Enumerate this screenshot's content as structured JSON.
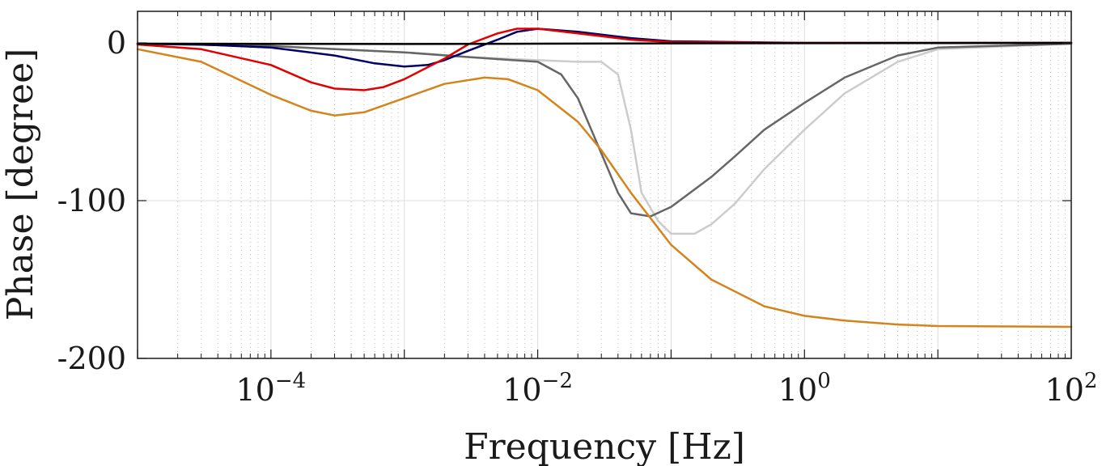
{
  "chart_data": {
    "type": "line",
    "xscale": "log",
    "xlabel": "Frequency [Hz]",
    "ylabel": "Phase [degree]",
    "xlim": [
      1e-05,
      100
    ],
    "ylim": [
      -200,
      20
    ],
    "grid": true,
    "xticks": [
      0.0001,
      0.01,
      1,
      100
    ],
    "xtick_labels": [
      {
        "base": "10",
        "exp": "−4"
      },
      {
        "base": "10",
        "exp": "−2"
      },
      {
        "base": "10",
        "exp": "0"
      },
      {
        "base": "10",
        "exp": "2"
      }
    ],
    "yticks": [
      0,
      -100,
      -200
    ],
    "ytick_labels": [
      "0",
      "-100",
      "-200"
    ],
    "series": [
      {
        "color": "#000000",
        "x": [
          1e-05,
          0.0001,
          0.001,
          0.01,
          0.1,
          1,
          10,
          100
        ],
        "y": [
          -0.5,
          -0.6,
          -0.7,
          -0.5,
          -0.3,
          -0.2,
          -0.1,
          0
        ]
      },
      {
        "color": "#000066",
        "x": [
          1e-05,
          3e-05,
          0.0001,
          0.0003,
          0.0006,
          0.001,
          0.0015,
          0.002,
          0.003,
          0.005,
          0.007,
          0.01,
          0.02,
          0.05,
          0.1,
          1,
          10,
          100
        ],
        "y": [
          -0.5,
          -1,
          -3,
          -8,
          -13,
          -15,
          -14,
          -11,
          -5,
          2,
          7,
          9,
          7,
          3,
          1,
          0,
          0,
          0
        ]
      },
      {
        "color": "#666666",
        "x": [
          1e-05,
          0.0001,
          0.001,
          0.003,
          0.01,
          0.015,
          0.02,
          0.03,
          0.04,
          0.05,
          0.07,
          0.1,
          0.2,
          0.3,
          0.5,
          1,
          2,
          5,
          10,
          100
        ],
        "y": [
          -0.5,
          -2,
          -6,
          -9,
          -12,
          -20,
          -35,
          -70,
          -95,
          -108,
          -110,
          -104,
          -85,
          -72,
          -55,
          -38,
          -22,
          -8,
          -3,
          -0.5
        ]
      },
      {
        "color": "#cccccc",
        "x": [
          1e-05,
          0.0001,
          0.001,
          0.003,
          0.01,
          0.02,
          0.03,
          0.04,
          0.05,
          0.06,
          0.08,
          0.1,
          0.15,
          0.2,
          0.3,
          0.5,
          1,
          2,
          5,
          10,
          100
        ],
        "y": [
          -0.5,
          -2,
          -6,
          -9,
          -11,
          -12,
          -12,
          -20,
          -55,
          -95,
          -113,
          -121,
          -121,
          -115,
          -102,
          -80,
          -55,
          -32,
          -12,
          -4,
          -0.5
        ]
      },
      {
        "color": "#e00000",
        "x": [
          1e-05,
          3e-05,
          0.0001,
          0.0002,
          0.0003,
          0.0005,
          0.0007,
          0.001,
          0.002,
          0.003,
          0.005,
          0.007,
          0.01,
          0.02,
          0.05,
          0.1,
          1,
          10,
          100
        ],
        "y": [
          -1,
          -4,
          -14,
          -25,
          -29,
          -30,
          -28,
          -23,
          -10,
          -1,
          6,
          9,
          9,
          6,
          2,
          0.5,
          0,
          0,
          0
        ]
      },
      {
        "color": "#d4841c",
        "x": [
          1e-05,
          3e-05,
          0.0001,
          0.0002,
          0.0003,
          0.0005,
          0.001,
          0.002,
          0.004,
          0.006,
          0.01,
          0.02,
          0.03,
          0.05,
          0.1,
          0.2,
          0.5,
          1,
          2,
          5,
          10,
          100
        ],
        "y": [
          -4,
          -12,
          -33,
          -43,
          -46,
          -44,
          -35,
          -26,
          -22,
          -23,
          -30,
          -50,
          -68,
          -95,
          -128,
          -150,
          -167,
          -173,
          -176,
          -178.5,
          -179.5,
          -180
        ]
      }
    ]
  }
}
